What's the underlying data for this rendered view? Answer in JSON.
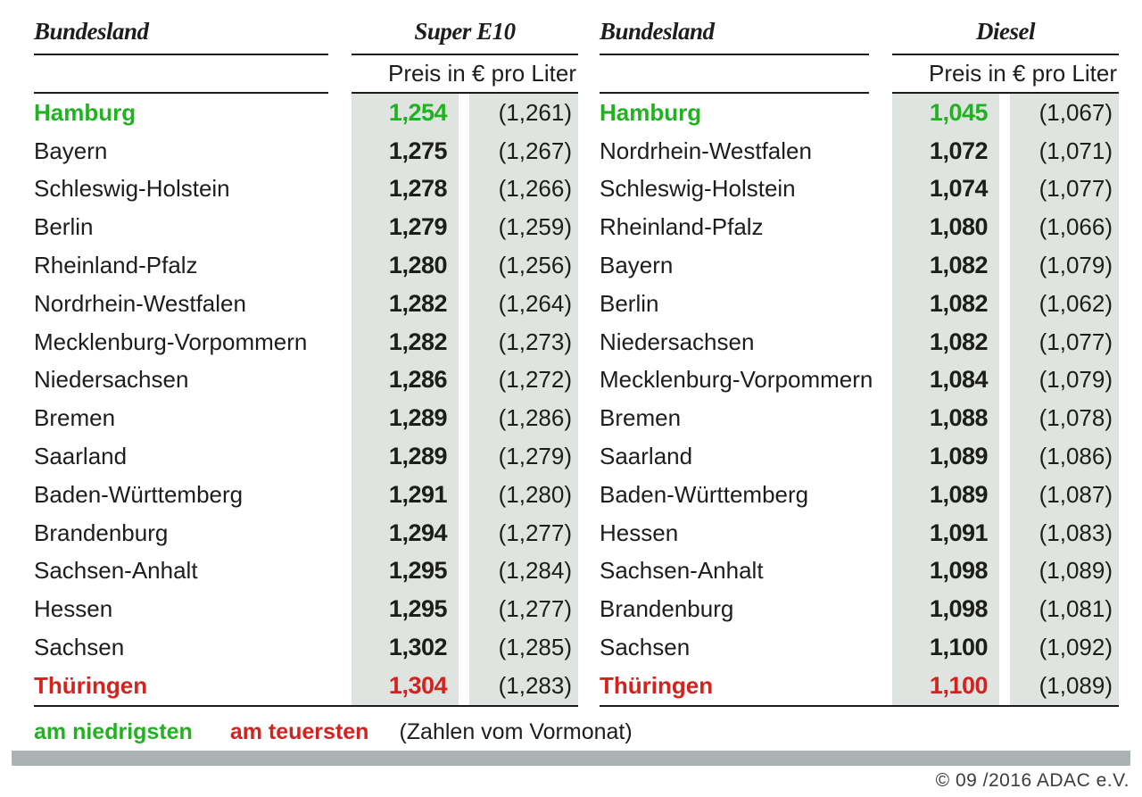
{
  "chart_data": [
    {
      "type": "table",
      "title": "Super E10",
      "col_headers": [
        "Bundesland",
        "Super E10"
      ],
      "subheader": "Preis in € pro Liter",
      "unit": "€ pro Liter",
      "rows": [
        {
          "state": "Hamburg",
          "price": "1,254",
          "prev": "(1,261)",
          "highlight": "lowest"
        },
        {
          "state": "Bayern",
          "price": "1,275",
          "prev": "(1,267)"
        },
        {
          "state": "Schleswig-Holstein",
          "price": "1,278",
          "prev": "(1,266)"
        },
        {
          "state": "Berlin",
          "price": "1,279",
          "prev": "(1,259)"
        },
        {
          "state": "Rheinland-Pfalz",
          "price": "1,280",
          "prev": "(1,256)"
        },
        {
          "state": "Nordrhein-Westfalen",
          "price": "1,282",
          "prev": "(1,264)"
        },
        {
          "state": "Mecklenburg-Vorpommern",
          "price": "1,282",
          "prev": "(1,273)"
        },
        {
          "state": "Niedersachsen",
          "price": "1,286",
          "prev": "(1,272)"
        },
        {
          "state": "Bremen",
          "price": "1,289",
          "prev": "(1,286)"
        },
        {
          "state": "Saarland",
          "price": "1,289",
          "prev": "(1,279)"
        },
        {
          "state": "Baden-Württemberg",
          "price": "1,291",
          "prev": "(1,280)"
        },
        {
          "state": "Brandenburg",
          "price": "1,294",
          "prev": "(1,277)"
        },
        {
          "state": "Sachsen-Anhalt",
          "price": "1,295",
          "prev": "(1,284)"
        },
        {
          "state": "Hessen",
          "price": "1,295",
          "prev": "(1,277)"
        },
        {
          "state": "Sachsen",
          "price": "1,302",
          "prev": "(1,285)"
        },
        {
          "state": "Thüringen",
          "price": "1,304",
          "prev": "(1,283)",
          "highlight": "highest"
        }
      ]
    },
    {
      "type": "table",
      "title": "Diesel",
      "col_headers": [
        "Bundesland",
        "Diesel"
      ],
      "subheader": "Preis in € pro Liter",
      "unit": "€ pro Liter",
      "rows": [
        {
          "state": "Hamburg",
          "price": "1,045",
          "prev": "(1,067)",
          "highlight": "lowest"
        },
        {
          "state": "Nordrhein-Westfalen",
          "price": "1,072",
          "prev": "(1,071)"
        },
        {
          "state": "Schleswig-Holstein",
          "price": "1,074",
          "prev": "(1,077)"
        },
        {
          "state": "Rheinland-Pfalz",
          "price": "1,080",
          "prev": "(1,066)"
        },
        {
          "state": "Bayern",
          "price": "1,082",
          "prev": "(1,079)"
        },
        {
          "state": "Berlin",
          "price": "1,082",
          "prev": "(1,062)"
        },
        {
          "state": "Niedersachsen",
          "price": "1,082",
          "prev": "(1,077)"
        },
        {
          "state": "Mecklenburg-Vorpommern",
          "price": "1,084",
          "prev": "(1,079)"
        },
        {
          "state": "Bremen",
          "price": "1,088",
          "prev": "(1,078)"
        },
        {
          "state": "Saarland",
          "price": "1,089",
          "prev": "(1,086)"
        },
        {
          "state": "Baden-Württemberg",
          "price": "1,089",
          "prev": "(1,087)"
        },
        {
          "state": "Hessen",
          "price": "1,091",
          "prev": "(1,083)"
        },
        {
          "state": "Sachsen-Anhalt",
          "price": "1,098",
          "prev": "(1,089)"
        },
        {
          "state": "Brandenburg",
          "price": "1,098",
          "prev": "(1,081)"
        },
        {
          "state": "Sachsen",
          "price": "1,100",
          "prev": "(1,092)"
        },
        {
          "state": "Thüringen",
          "price": "1,100",
          "prev": "(1,089)",
          "highlight": "highest"
        }
      ]
    }
  ],
  "legend": {
    "lowest_label": "am niedrigsten",
    "highest_label": "am teuersten",
    "note": "(Zahlen vom Vormonat)"
  },
  "footer": {
    "copyright": "© 09 /2016 ADAC e.V."
  },
  "colors": {
    "lowest_green": "#20b220",
    "highest_red": "#d2231f",
    "price_column_bg": "#dfe4e1",
    "footer_bar_gray": "#aab3b1"
  }
}
